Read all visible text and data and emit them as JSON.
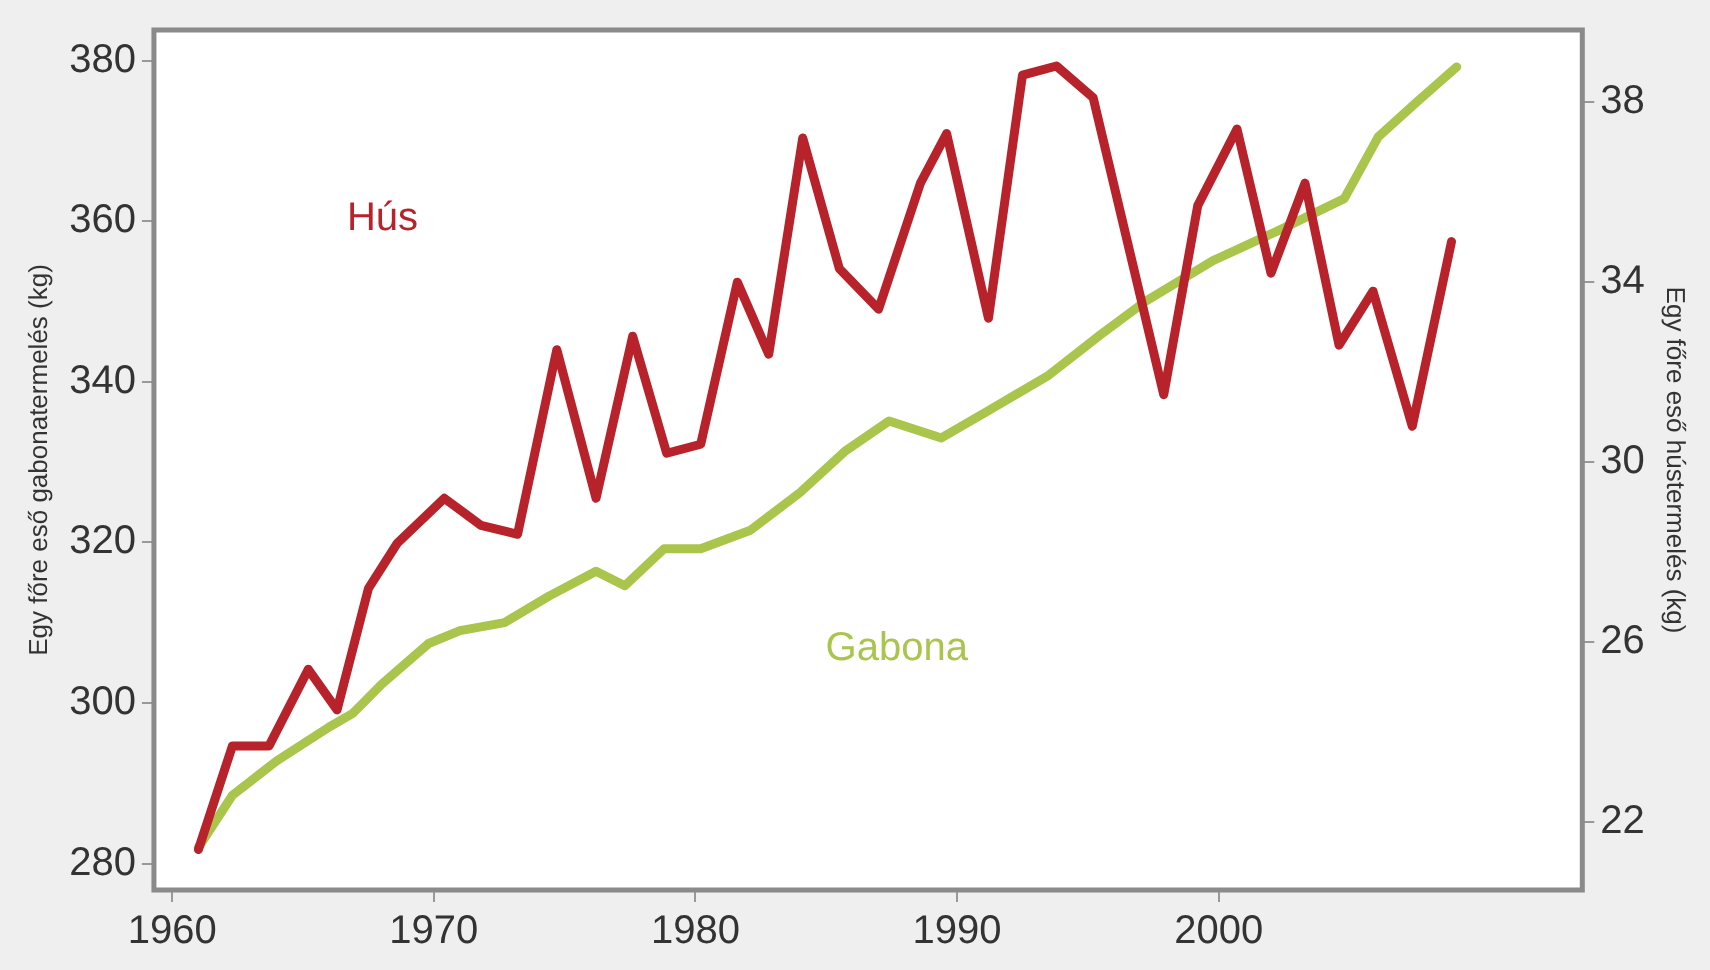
{
  "chart_data": {
    "type": "line",
    "ylabel": "Egy főre eső gabonatermelés (kg)",
    "y2label": "Egy főre eső hústermelés (kg)",
    "xlim": [
      1959.3,
      2013.9
    ],
    "xticks": [
      1960,
      1970,
      1980,
      1990,
      2000
    ],
    "ylim": [
      276.7,
      383.8
    ],
    "yticks": [
      280,
      300,
      320,
      340,
      360,
      380
    ],
    "y2lim": [
      20.5,
      39.6
    ],
    "y2ticks": [
      22,
      26,
      30,
      34,
      38
    ],
    "grid": false,
    "legend": false,
    "marker": "none",
    "line_style": "solid",
    "series": [
      {
        "name": "Hús",
        "color": "#b8232b",
        "axis": "y2",
        "x": [
          1961.0,
          1962.3,
          1963.7,
          1965.2,
          1966.3,
          1967.5,
          1968.6,
          1970.4,
          1971.8,
          1973.2,
          1974.7,
          1976.2,
          1977.6,
          1978.9,
          1980.2,
          1981.6,
          1982.8,
          1984.1,
          1985.5,
          1987.0,
          1988.6,
          1989.6,
          1991.2,
          1992.5,
          1993.8,
          1995.2,
          1997.9,
          1999.2,
          2000.7,
          2002.0,
          2003.3,
          2004.6,
          2005.9,
          2007.4,
          2008.9
        ],
        "values": [
          21.4,
          23.7,
          23.7,
          25.4,
          24.5,
          27.2,
          28.2,
          29.2,
          28.6,
          28.4,
          32.5,
          29.2,
          32.8,
          30.2,
          30.4,
          34.0,
          32.4,
          37.2,
          34.3,
          33.4,
          36.2,
          37.3,
          33.2,
          38.6,
          38.8,
          38.1,
          31.5,
          35.7,
          37.4,
          34.2,
          36.2,
          32.6,
          33.8,
          30.8,
          34.9
        ]
      },
      {
        "name": "Gabona",
        "color": "#a9c54c",
        "axis": "y",
        "x": [
          1961.0,
          1962.3,
          1964.0,
          1966.0,
          1966.9,
          1968.0,
          1969.8,
          1971.0,
          1972.7,
          1974.4,
          1976.2,
          1977.3,
          1978.8,
          1980.2,
          1982.1,
          1984.0,
          1985.7,
          1987.4,
          1989.4,
          1991.2,
          1993.5,
          1995.5,
          1997.2,
          1999.8,
          2002.2,
          2004.8,
          2006.1,
          2007.6,
          2009.1
        ],
        "values": [
          282,
          288.5,
          292.8,
          297,
          298.7,
          302.3,
          307.4,
          309,
          310,
          313.3,
          316.4,
          314.6,
          319.2,
          319.2,
          321.5,
          326.2,
          331.3,
          335.1,
          333,
          336.4,
          340.8,
          345.9,
          350,
          355.1,
          358.7,
          362.8,
          370.5,
          374.9,
          379.2
        ]
      }
    ]
  }
}
